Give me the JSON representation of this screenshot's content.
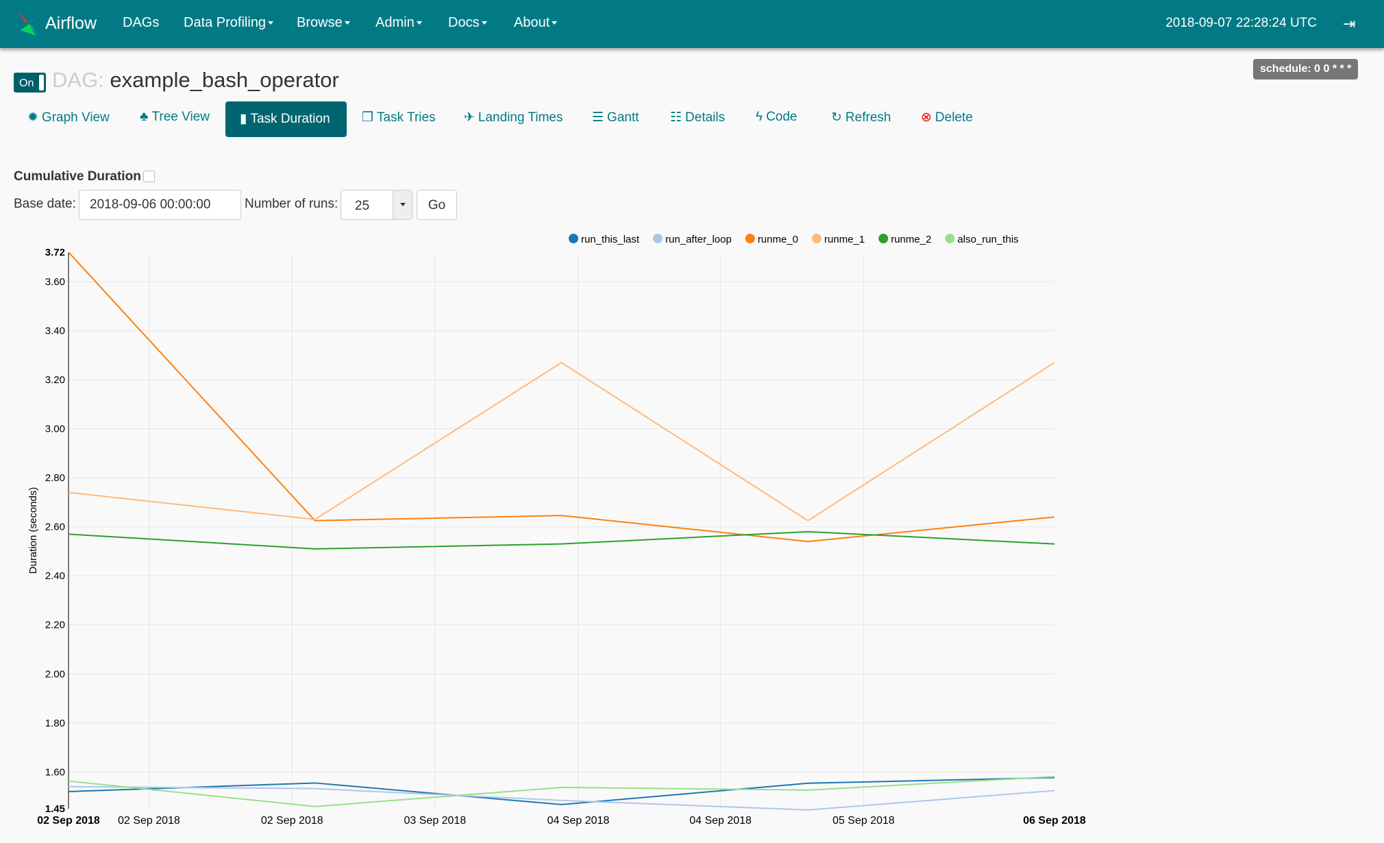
{
  "navbar": {
    "brand": "Airflow",
    "items": [
      {
        "label": "DAGs",
        "dropdown": false
      },
      {
        "label": "Data Profiling",
        "dropdown": true
      },
      {
        "label": "Browse",
        "dropdown": true
      },
      {
        "label": "Admin",
        "dropdown": true
      },
      {
        "label": "Docs",
        "dropdown": true
      },
      {
        "label": "About",
        "dropdown": true
      }
    ],
    "time": "2018-09-07 22:28:24 UTC",
    "logout_icon": "sign-out-icon",
    "color": "#017a85"
  },
  "dag": {
    "toggle": "On",
    "prefix": "DAG:",
    "name": "example_bash_operator",
    "schedule": "schedule: 0 0 * * *"
  },
  "tabs": [
    {
      "label": "Graph View",
      "icon": "✹",
      "active": false
    },
    {
      "label": "Tree View",
      "icon": "♣",
      "active": false
    },
    {
      "label": "Task Duration",
      "icon": "▮",
      "active": true
    },
    {
      "label": "Task Tries",
      "icon": "❐",
      "active": false
    },
    {
      "label": "Landing Times",
      "icon": "✈",
      "active": false
    },
    {
      "label": "Gantt",
      "icon": "☰",
      "active": false
    },
    {
      "label": "Details",
      "icon": "☷",
      "active": false
    },
    {
      "label": "Code",
      "icon": "ϟ",
      "active": false
    },
    {
      "label": "Refresh",
      "icon": "↻",
      "active": false
    },
    {
      "label": "Delete",
      "icon": "⊗",
      "active": false
    }
  ],
  "form": {
    "cumulative_label": "Cumulative Duration",
    "cumulative_checked": false,
    "base_date_label": "Base date:",
    "base_date": "2018-09-06 00:00:00",
    "runs_label": "Number of runs:",
    "runs": "25",
    "go": "Go"
  },
  "chart_data": {
    "type": "line",
    "ylabel": "Duration (seconds)",
    "ylim": [
      1.45,
      3.72
    ],
    "y_ticks": [
      "3.72",
      "3.60",
      "3.40",
      "3.20",
      "3.00",
      "2.80",
      "2.60",
      "2.40",
      "2.20",
      "2.00",
      "1.80",
      "1.60",
      "1.45"
    ],
    "x": [
      "2018-09-02",
      "2018-09-03",
      "2018-09-04",
      "2018-09-05",
      "2018-09-06"
    ],
    "x_ticks": [
      {
        "label": "02 Sep 2018",
        "at": "2018-09-02T00:00",
        "bold": true
      },
      {
        "label": "02 Sep 2018",
        "at": "2018-09-02T07:50"
      },
      {
        "label": "02 Sep 2018",
        "at": "2018-09-02T21:46"
      },
      {
        "label": "03 Sep 2018",
        "at": "2018-09-03T11:41"
      },
      {
        "label": "04 Sep 2018",
        "at": "2018-09-04T01:38"
      },
      {
        "label": "04 Sep 2018",
        "at": "2018-09-04T15:29"
      },
      {
        "label": "05 Sep 2018",
        "at": "2018-09-05T05:25"
      },
      {
        "label": "06 Sep 2018",
        "at": "2018-09-06T00:00",
        "bold": true
      }
    ],
    "legend_position": "top-right",
    "grid": true,
    "series": [
      {
        "name": "run_this_last",
        "color": "#1f77b4",
        "values": [
          1.52,
          1.555,
          1.467,
          1.554,
          1.577
        ]
      },
      {
        "name": "run_after_loop",
        "color": "#aec7e8",
        "values": [
          1.54,
          1.532,
          1.484,
          1.445,
          1.524
        ]
      },
      {
        "name": "runme_0",
        "color": "#ff7f0e",
        "values": [
          3.72,
          2.625,
          2.646,
          2.54,
          2.64
        ]
      },
      {
        "name": "runme_1",
        "color": "#ffbb78",
        "values": [
          2.74,
          2.63,
          3.27,
          2.625,
          3.27
        ]
      },
      {
        "name": "runme_2",
        "color": "#2ca02c",
        "values": [
          2.57,
          2.51,
          2.53,
          2.58,
          2.53
        ]
      },
      {
        "name": "also_run_this",
        "color": "#98df8a",
        "values": [
          1.563,
          1.459,
          1.537,
          1.526,
          1.581
        ]
      }
    ]
  }
}
